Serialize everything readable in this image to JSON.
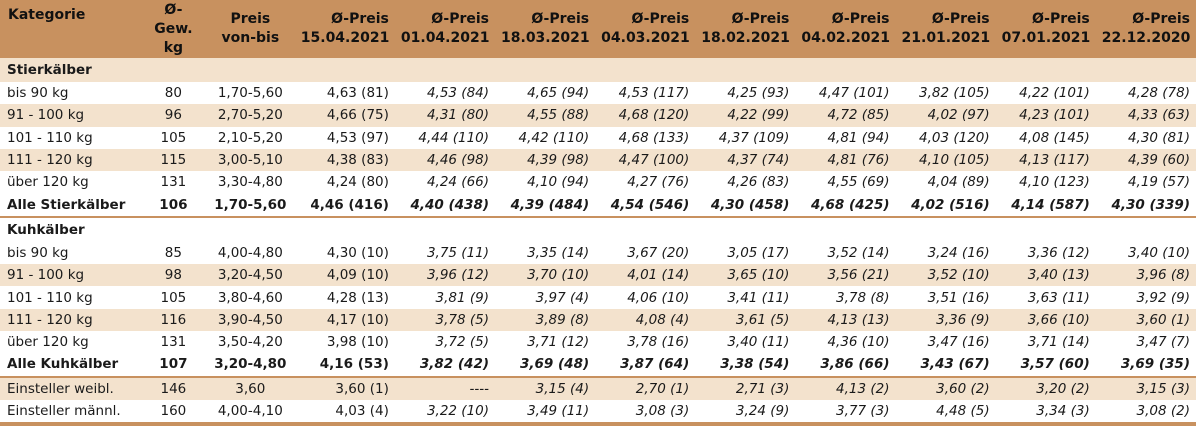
{
  "headers": [
    [
      "Kategorie",
      ""
    ],
    [
      "Ø-Gew.",
      "kg"
    ],
    [
      "Preis",
      "von-bis"
    ],
    [
      "Ø-Preis",
      "15.04.2021"
    ],
    [
      "Ø-Preis",
      "01.04.2021"
    ],
    [
      "Ø-Preis",
      "18.03.2021"
    ],
    [
      "Ø-Preis",
      "04.03.2021"
    ],
    [
      "Ø-Preis",
      "18.02.2021"
    ],
    [
      "Ø-Preis",
      "04.02.2021"
    ],
    [
      "Ø-Preis",
      "21.01.2021"
    ],
    [
      "Ø-Preis",
      "07.01.2021"
    ],
    [
      "Ø-Preis",
      "22.12.2020"
    ]
  ],
  "sections": [
    {
      "title": "Stierkälber",
      "rows": [
        [
          "bis 90 kg",
          "80",
          "1,70-5,60",
          "4,63 (81)",
          "4,53 (84)",
          "4,65 (94)",
          "4,53 (117)",
          "4,25 (93)",
          "4,47 (101)",
          "3,82 (105)",
          "4,22 (101)",
          "4,28 (78)"
        ],
        [
          "91 - 100 kg",
          "96",
          "2,70-5,20",
          "4,66 (75)",
          "4,31 (80)",
          "4,55 (88)",
          "4,68 (120)",
          "4,22 (99)",
          "4,72 (85)",
          "4,02 (97)",
          "4,23 (101)",
          "4,33 (63)"
        ],
        [
          "101 - 110 kg",
          "105",
          "2,10-5,20",
          "4,53 (97)",
          "4,44 (110)",
          "4,42 (110)",
          "4,68 (133)",
          "4,37 (109)",
          "4,81 (94)",
          "4,03 (120)",
          "4,08 (145)",
          "4,30 (81)"
        ],
        [
          "111 - 120 kg",
          "115",
          "3,00-5,10",
          "4,38 (83)",
          "4,46 (98)",
          "4,39 (98)",
          "4,47 (100)",
          "4,37 (74)",
          "4,81 (76)",
          "4,10 (105)",
          "4,13 (117)",
          "4,39 (60)"
        ],
        [
          "über 120 kg",
          "131",
          "3,30-4,80",
          "4,24 (80)",
          "4,24 (66)",
          "4,10 (94)",
          "4,27 (76)",
          "4,26 (83)",
          "4,55 (69)",
          "4,04 (89)",
          "4,10 (123)",
          "4,19 (57)"
        ]
      ],
      "total": [
        "Alle Stierkälber",
        "106",
        "1,70-5,60",
        "4,46 (416)",
        "4,40 (438)",
        "4,39 (484)",
        "4,54 (546)",
        "4,30 (458)",
        "4,68 (425)",
        "4,02 (516)",
        "4,14 (587)",
        "4,30 (339)"
      ]
    },
    {
      "title": "Kuhkälber",
      "rows": [
        [
          "bis 90 kg",
          "85",
          "4,00-4,80",
          "4,30 (10)",
          "3,75 (11)",
          "3,35 (14)",
          "3,67 (20)",
          "3,05 (17)",
          "3,52 (14)",
          "3,24 (16)",
          "3,36 (12)",
          "3,40 (10)"
        ],
        [
          "91 - 100 kg",
          "98",
          "3,20-4,50",
          "4,09 (10)",
          "3,96 (12)",
          "3,70 (10)",
          "4,01 (14)",
          "3,65 (10)",
          "3,56 (21)",
          "3,52 (10)",
          "3,40 (13)",
          "3,96 (8)"
        ],
        [
          "101 - 110 kg",
          "105",
          "3,80-4,60",
          "4,28 (13)",
          "3,81 (9)",
          "3,97 (4)",
          "4,06 (10)",
          "3,41 (11)",
          "3,78 (8)",
          "3,51 (16)",
          "3,63 (11)",
          "3,92 (9)"
        ],
        [
          "111 - 120 kg",
          "116",
          "3,90-4,50",
          "4,17 (10)",
          "3,78 (5)",
          "3,89 (8)",
          "4,08 (4)",
          "3,61 (5)",
          "4,13 (13)",
          "3,36 (9)",
          "3,66 (10)",
          "3,60 (1)"
        ],
        [
          "über 120 kg",
          "131",
          "3,50-4,20",
          "3,98 (10)",
          "3,72 (5)",
          "3,71 (12)",
          "3,78 (16)",
          "3,40 (11)",
          "4,36 (10)",
          "3,47 (16)",
          "3,71 (14)",
          "3,47 (7)"
        ]
      ],
      "total": [
        "Alle Kuhkälber",
        "107",
        "3,20-4,80",
        "4,16 (53)",
        "3,82 (42)",
        "3,69 (48)",
        "3,87 (64)",
        "3,38 (54)",
        "3,86 (66)",
        "3,43 (67)",
        "3,57 (60)",
        "3,69 (35)"
      ]
    }
  ],
  "extra_rows": [
    [
      "Einsteller weibl.",
      "146",
      "3,60",
      "3,60 (1)",
      "----",
      "3,15 (4)",
      "2,70 (1)",
      "2,71 (3)",
      "4,13 (2)",
      "3,60 (2)",
      "3,20 (2)",
      "3,15 (3)"
    ],
    [
      "Einsteller männl.",
      "160",
      "4,00-4,10",
      "4,03 (4)",
      "3,22 (10)",
      "3,49 (11)",
      "3,08 (3)",
      "3,24 (9)",
      "3,77 (3)",
      "4,48 (5)",
      "3,34 (3)",
      "3,08 (2)"
    ]
  ]
}
